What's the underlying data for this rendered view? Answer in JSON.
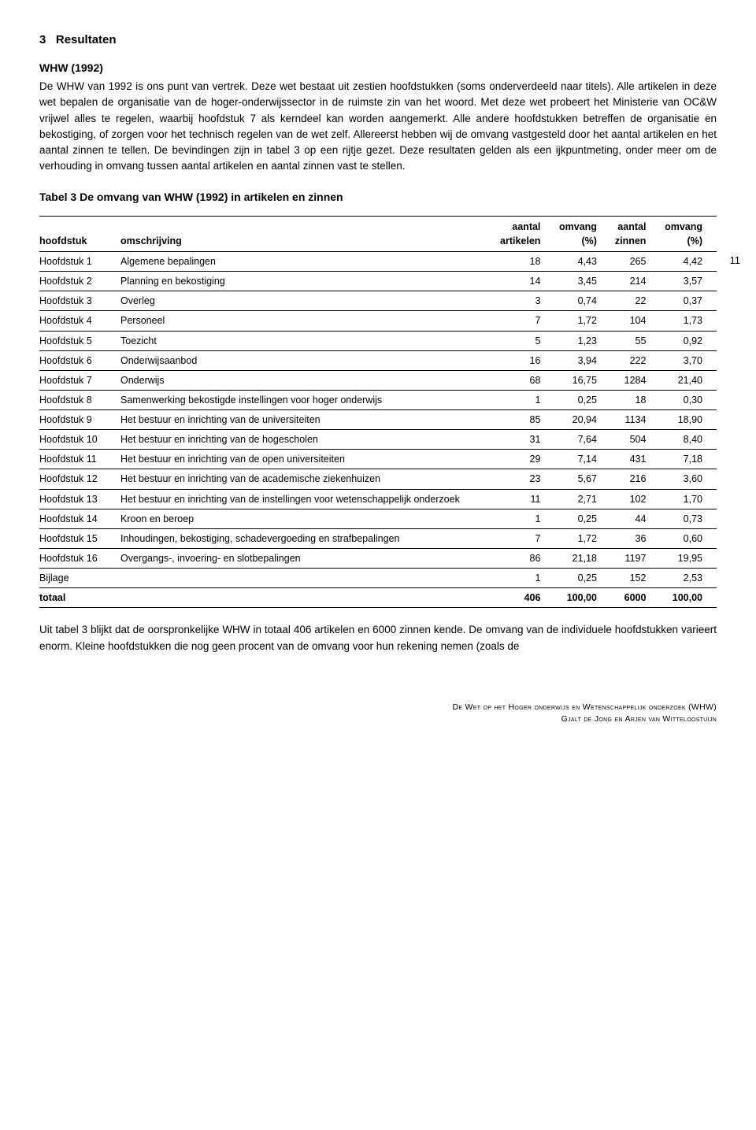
{
  "section_number": "3",
  "section_title": "Resultaten",
  "subheading": "WHW (1992)",
  "intro_paragraph": "De WHW van 1992 is ons punt van vertrek. Deze wet bestaat uit zestien hoofdstukken (soms onderverdeeld naar titels). Alle artikelen in deze wet bepalen de organisatie van de hoger-onderwijssector in de ruimste zin van het woord. Met deze wet probeert het Ministerie van OC&W vrijwel alles te regelen, waarbij hoofdstuk 7 als kerndeel kan worden aangemerkt. Alle andere hoofdstukken betreffen de organisatie en bekostiging, of zorgen voor het technisch regelen van de wet zelf. Allereerst hebben wij de omvang vastgesteld door het aantal artikelen en het aantal zinnen te tellen. De bevindingen zijn in tabel 3 op een rijtje gezet. Deze resultaten gelden als een ijkpuntmeting, onder meer om de verhouding in omvang tussen aantal artikelen en aantal zinnen vast te stellen.",
  "table_title": "Tabel 3  De omvang van WHW (1992) in artikelen en zinnen",
  "page_number": "11",
  "table": {
    "columns": [
      {
        "key": "hoofdstuk",
        "label": "hoofdstuk",
        "align": "left"
      },
      {
        "key": "omschrijving",
        "label": "omschrijving",
        "align": "left"
      },
      {
        "key": "aantal_artikelen",
        "label_top": "aantal",
        "label_bottom": "artikelen",
        "align": "right"
      },
      {
        "key": "omvang_art_pct",
        "label_top": "omvang",
        "label_bottom": "(%)",
        "align": "right"
      },
      {
        "key": "aantal_zinnen",
        "label_top": "aantal",
        "label_bottom": "zinnen",
        "align": "right"
      },
      {
        "key": "omvang_zin_pct",
        "label_top": "omvang",
        "label_bottom": "(%)",
        "align": "right"
      }
    ],
    "rows": [
      [
        "Hoofdstuk 1",
        "Algemene bepalingen",
        "18",
        "4,43",
        "265",
        "4,42"
      ],
      [
        "Hoofdstuk 2",
        "Planning en bekostiging",
        "14",
        "3,45",
        "214",
        "3,57"
      ],
      [
        "Hoofdstuk 3",
        "Overleg",
        "3",
        "0,74",
        "22",
        "0,37"
      ],
      [
        "Hoofdstuk 4",
        "Personeel",
        "7",
        "1,72",
        "104",
        "1,73"
      ],
      [
        "Hoofdstuk 5",
        "Toezicht",
        "5",
        "1,23",
        "55",
        "0,92"
      ],
      [
        "Hoofdstuk 6",
        "Onderwijsaanbod",
        "16",
        "3,94",
        "222",
        "3,70"
      ],
      [
        "Hoofdstuk 7",
        "Onderwijs",
        "68",
        "16,75",
        "1284",
        "21,40"
      ],
      [
        "Hoofdstuk 8",
        "Samenwerking bekostigde instellingen voor hoger onderwijs",
        "1",
        "0,25",
        "18",
        "0,30"
      ],
      [
        "Hoofdstuk 9",
        "Het bestuur en inrichting van de universiteiten",
        "85",
        "20,94",
        "1134",
        "18,90"
      ],
      [
        "Hoofdstuk 10",
        "Het bestuur en inrichting van de hogescholen",
        "31",
        "7,64",
        "504",
        "8,40"
      ],
      [
        "Hoofdstuk 11",
        "Het bestuur en inrichting van de open universiteiten",
        "29",
        "7,14",
        "431",
        "7,18"
      ],
      [
        "Hoofdstuk 12",
        "Het bestuur en inrichting van de academische ziekenhuizen",
        "23",
        "5,67",
        "216",
        "3,60"
      ],
      [
        "Hoofdstuk 13",
        "Het bestuur en inrichting van de instellingen voor wetenschappelijk onderzoek",
        "11",
        "2,71",
        "102",
        "1,70"
      ],
      [
        "Hoofdstuk 14",
        "Kroon en beroep",
        "1",
        "0,25",
        "44",
        "0,73"
      ],
      [
        "Hoofdstuk 15",
        "Inhoudingen, bekostiging, schadevergoeding en strafbepalingen",
        "7",
        "1,72",
        "36",
        "0,60"
      ],
      [
        "Hoofdstuk 16",
        "Overgangs-, invoering- en slotbepalingen",
        "86",
        "21,18",
        "1197",
        "19,95"
      ],
      [
        "Bijlage",
        "",
        "1",
        "0,25",
        "152",
        "2,53"
      ]
    ],
    "total_row": [
      "totaal",
      "",
      "406",
      "100,00",
      "6000",
      "100,00"
    ]
  },
  "post_table_paragraph": "Uit tabel 3 blijkt dat de oorspronkelijke WHW in totaal 406 artikelen en 6000 zinnen kende. De omvang van de individuele hoofdstukken varieert enorm. Kleine hoofdstukken die nog geen procent van de omvang voor hun rekening nemen (zoals de",
  "footer": {
    "line1": "De Wet op het Hoger onderwijs en Wetenschappelijk onderzoek (WHW)",
    "line2": "Gjalt de Jong en Arjen van Witteloostuijn"
  }
}
